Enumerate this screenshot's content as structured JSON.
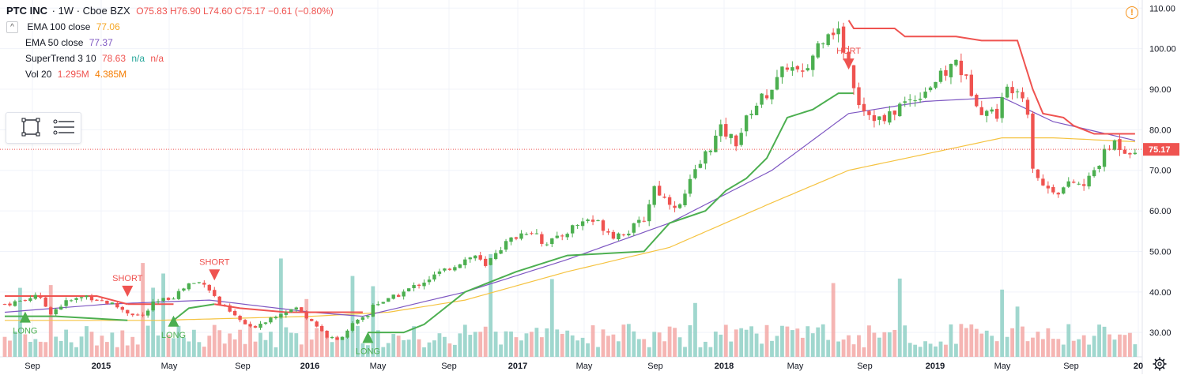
{
  "header": {
    "symbol": "PTC INC",
    "interval": "1W",
    "exchange": "Cboe BZX",
    "ohlc": "O75.83  H76.90  L74.60  C75.17  −0.61 (−0.80%)"
  },
  "indicators": [
    {
      "label": "EMA 100 close",
      "value": "77.06",
      "color": "#f5a623"
    },
    {
      "label": "EMA 50 close",
      "value": "77.37",
      "color": "#7e57c2"
    },
    {
      "label": "SuperTrend 3 10",
      "value": "78.63",
      "extra1": "n/a",
      "extra2": "n/a",
      "color": "#ef5350",
      "extra_color": "#26a69a"
    },
    {
      "label": "Vol 20",
      "value": "1.295M",
      "extra1": "4.385M",
      "color": "#ef5350",
      "extra_color": "#f57c00"
    }
  ],
  "icons": {
    "collapse": "chevron-up-icon",
    "rectangle_tool": "rectangle-select-icon",
    "menu_tool": "list-menu-icon",
    "alert": "alert-icon",
    "settings": "gear-icon"
  },
  "alert_symbol": "!",
  "colors": {
    "up": "#4caf50",
    "down": "#ef5350",
    "up_vol": "#8fd0c6",
    "down_vol": "#f3a8a6",
    "ema100": "#f5c341",
    "ema50": "#7e57c2",
    "supertrend_up": "#4caf50",
    "supertrend_down": "#ef5350",
    "last_price": "#ef5350"
  },
  "chart_data": {
    "type": "candlestick",
    "x_tick_labels": [
      "Sep",
      "2015",
      "May",
      "Sep",
      "2016",
      "May",
      "Sep",
      "2017",
      "May",
      "Sep",
      "2018",
      "May",
      "Sep",
      "2019",
      "May",
      "Sep",
      "20"
    ],
    "y_tick_labels": [
      "110.00",
      "100.00",
      "90.00",
      "80.00",
      "70.00",
      "60.00",
      "50.00",
      "40.00",
      "30.00"
    ],
    "ylim": [
      24,
      112
    ],
    "last_price": 75.17,
    "last_price_label": "75.17",
    "close_anchors": [
      [
        0,
        37
      ],
      [
        4,
        38
      ],
      [
        6,
        39.5
      ],
      [
        9,
        35
      ],
      [
        12,
        37.5
      ],
      [
        16,
        39
      ],
      [
        21,
        37
      ],
      [
        24,
        35
      ],
      [
        27,
        34
      ],
      [
        29,
        37
      ],
      [
        33,
        39
      ],
      [
        36,
        42
      ],
      [
        39,
        42.5
      ],
      [
        42,
        37
      ],
      [
        45,
        34
      ],
      [
        48,
        31
      ],
      [
        51,
        33
      ],
      [
        54,
        35
      ],
      [
        57,
        36
      ],
      [
        60,
        33
      ],
      [
        63,
        29
      ],
      [
        65,
        28
      ],
      [
        68,
        32
      ],
      [
        71,
        34
      ],
      [
        72,
        37
      ],
      [
        75,
        38
      ],
      [
        78,
        40
      ],
      [
        81,
        42
      ],
      [
        84,
        44
      ],
      [
        87,
        46
      ],
      [
        90,
        48
      ],
      [
        92,
        49
      ],
      [
        94,
        46
      ],
      [
        96,
        50
      ],
      [
        99,
        53
      ],
      [
        102,
        55
      ],
      [
        104,
        55
      ],
      [
        105,
        52
      ],
      [
        108,
        53
      ],
      [
        111,
        56
      ],
      [
        114,
        58
      ],
      [
        116,
        57
      ],
      [
        119,
        54
      ],
      [
        122,
        55
      ],
      [
        125,
        58
      ],
      [
        127,
        66
      ],
      [
        129,
        63
      ],
      [
        132,
        61
      ],
      [
        134,
        67
      ],
      [
        137,
        74
      ],
      [
        140,
        80
      ],
      [
        143,
        77
      ],
      [
        146,
        85
      ],
      [
        149,
        89
      ],
      [
        151,
        92
      ],
      [
        153,
        96
      ],
      [
        156,
        93
      ],
      [
        159,
        101
      ],
      [
        161,
        105
      ],
      [
        163,
        104
      ],
      [
        165,
        96
      ],
      [
        167,
        87
      ],
      [
        169,
        84
      ],
      [
        172,
        82
      ],
      [
        175,
        86
      ],
      [
        178,
        88
      ],
      [
        181,
        91
      ],
      [
        184,
        94
      ],
      [
        186,
        97
      ],
      [
        188,
        92
      ],
      [
        191,
        85
      ],
      [
        194,
        84
      ],
      [
        196,
        90
      ],
      [
        198,
        91
      ],
      [
        200,
        85
      ],
      [
        201,
        71
      ],
      [
        203,
        66
      ],
      [
        206,
        65
      ],
      [
        209,
        67
      ],
      [
        211,
        66
      ],
      [
        213,
        70
      ],
      [
        215,
        74
      ],
      [
        217,
        77
      ],
      [
        219,
        75
      ],
      [
        221,
        75.17
      ]
    ],
    "ema100_anchors": [
      [
        0,
        33
      ],
      [
        30,
        33
      ],
      [
        60,
        34
      ],
      [
        75,
        35
      ],
      [
        90,
        38
      ],
      [
        110,
        45
      ],
      [
        130,
        51
      ],
      [
        150,
        62
      ],
      [
        165,
        70
      ],
      [
        180,
        74
      ],
      [
        195,
        78
      ],
      [
        205,
        78
      ],
      [
        221,
        77.06
      ]
    ],
    "ema50_anchors": [
      [
        0,
        35
      ],
      [
        20,
        37
      ],
      [
        40,
        38
      ],
      [
        60,
        35
      ],
      [
        70,
        34
      ],
      [
        90,
        40
      ],
      [
        110,
        48
      ],
      [
        130,
        57
      ],
      [
        150,
        70
      ],
      [
        165,
        84
      ],
      [
        180,
        87
      ],
      [
        195,
        88
      ],
      [
        205,
        82
      ],
      [
        221,
        77.37
      ]
    ],
    "supertrend_segments": [
      {
        "dir": "down",
        "points": [
          [
            0,
            39
          ],
          [
            18,
            39
          ],
          [
            24,
            37
          ]
        ]
      },
      {
        "dir": "up",
        "points": [
          [
            0,
            34
          ],
          [
            10,
            34
          ],
          [
            24,
            33
          ]
        ]
      },
      {
        "dir": "down",
        "points": [
          [
            24,
            37
          ],
          [
            30,
            37
          ],
          [
            33,
            37
          ]
        ]
      },
      {
        "dir": "up",
        "points": [
          [
            33,
            33
          ],
          [
            36,
            36
          ],
          [
            41,
            37
          ]
        ]
      },
      {
        "dir": "down",
        "points": [
          [
            41,
            37
          ],
          [
            46,
            36
          ],
          [
            55,
            35
          ],
          [
            70,
            35
          ]
        ]
      },
      {
        "dir": "up",
        "points": [
          [
            71,
            30
          ],
          [
            78,
            30
          ],
          [
            82,
            32
          ],
          [
            86,
            36
          ],
          [
            90,
            40
          ],
          [
            100,
            45
          ],
          [
            110,
            49
          ],
          [
            125,
            50
          ],
          [
            130,
            57
          ],
          [
            137,
            60
          ],
          [
            141,
            65
          ],
          [
            145,
            68
          ],
          [
            149,
            73
          ],
          [
            153,
            83
          ],
          [
            158,
            85
          ],
          [
            163,
            89
          ],
          [
            166,
            89
          ]
        ]
      },
      {
        "dir": "down",
        "points": [
          [
            165,
            107
          ],
          [
            166,
            105
          ],
          [
            174,
            105
          ],
          [
            176,
            103
          ],
          [
            186,
            103
          ],
          [
            191,
            102
          ],
          [
            198,
            102
          ],
          [
            201,
            90
          ],
          [
            203,
            84
          ],
          [
            207,
            83
          ],
          [
            209,
            81
          ],
          [
            213,
            79
          ],
          [
            221,
            79
          ]
        ]
      }
    ],
    "signals": [
      {
        "type": "long",
        "index": 4,
        "label": "LONG",
        "price": 34
      },
      {
        "type": "short",
        "index": 24,
        "label": "SHORT",
        "price": 40
      },
      {
        "type": "long",
        "index": 33,
        "label": "LONG",
        "price": 33
      },
      {
        "type": "short",
        "index": 41,
        "label": "SHORT",
        "price": 44
      },
      {
        "type": "long",
        "index": 71,
        "label": "LONG",
        "price": 29
      },
      {
        "type": "short",
        "index": 165,
        "label": "HORT",
        "price": 96
      }
    ]
  }
}
